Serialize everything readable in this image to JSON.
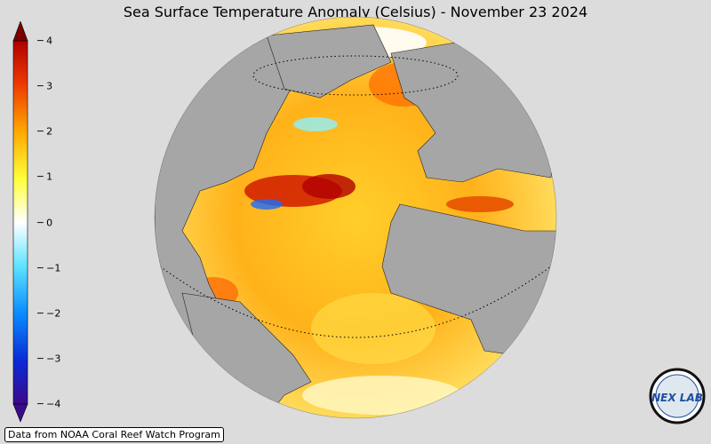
{
  "title": "Sea Surface Temperature Anomaly (Celsius) - November 23 2024",
  "colorbar": {
    "ticks": [
      "4",
      "3",
      "2",
      "1",
      "0",
      "−1",
      "−2",
      "−3",
      "−4"
    ],
    "colors": [
      "#3b0a8a",
      "#0a2bd6",
      "#0a8cff",
      "#5fe3ff",
      "#ffffff",
      "#ffff3a",
      "#ffa800",
      "#ee3a00",
      "#b00000",
      "#7a0000"
    ]
  },
  "map": {
    "projection": "orthographic",
    "ocean_color": "#ffc21a",
    "land_color": "#a6a6a6"
  },
  "credit": "Data from NOAA Coral Reef Watch Program",
  "logo": {
    "text": "NEX LAB"
  }
}
